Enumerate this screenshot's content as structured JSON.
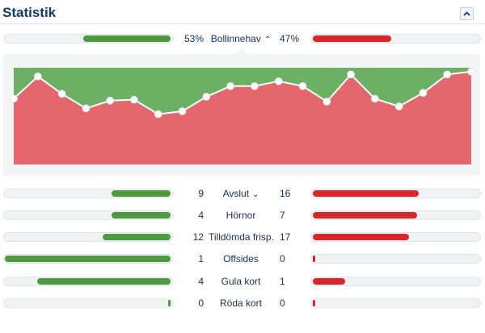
{
  "header": {
    "title": "Statistik"
  },
  "colors": {
    "home": "#4e9a40",
    "away": "#d8262b",
    "home_area": "#6cb064",
    "away_area": "#e3676d"
  },
  "possession": {
    "label": "Bollinnehav",
    "home": "53%",
    "away": "47%",
    "home_fraction": 0.53,
    "away_fraction": 0.47
  },
  "stats": [
    {
      "label": "Avslut",
      "home": "9",
      "away": "16",
      "expandable": true,
      "home_fraction": 0.36,
      "away_fraction": 0.64
    },
    {
      "label": "Hörnor",
      "home": "4",
      "away": "7",
      "expandable": false,
      "home_fraction": 0.36,
      "away_fraction": 0.64
    },
    {
      "label": "Tilldömda frisp.",
      "home": "12",
      "away": "17",
      "expandable": false,
      "home_fraction": 0.41,
      "away_fraction": 0.59
    },
    {
      "label": "Offsides",
      "home": "1",
      "away": "0",
      "expandable": false,
      "home_fraction": 1.0,
      "away_fraction": 0.0
    },
    {
      "label": "Gula kort",
      "home": "4",
      "away": "1",
      "expandable": false,
      "home_fraction": 0.8,
      "away_fraction": 0.2
    },
    {
      "label": "Röda kort",
      "home": "0",
      "away": "0",
      "expandable": false,
      "home_fraction": 0.0,
      "away_fraction": 0.0
    }
  ],
  "chart_data": {
    "type": "area",
    "ylim": [
      0,
      1
    ],
    "x": [
      0,
      1,
      2,
      3,
      4,
      5,
      6,
      7,
      8,
      9,
      10,
      11,
      12,
      13,
      14,
      15,
      16,
      17,
      18,
      19
    ],
    "values": [
      0.68,
      0.91,
      0.73,
      0.58,
      0.66,
      0.67,
      0.52,
      0.55,
      0.7,
      0.81,
      0.81,
      0.86,
      0.81,
      0.65,
      0.93,
      0.68,
      0.6,
      0.74,
      0.93,
      0.96
    ]
  }
}
